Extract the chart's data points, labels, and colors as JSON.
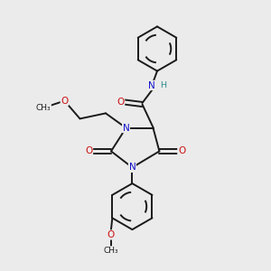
{
  "background_color": "#ebebeb",
  "bond_color": "#1a1a1a",
  "atom_colors": {
    "N": "#1010cc",
    "O": "#cc1010",
    "C": "#1a1a1a",
    "H": "#2a8a8a"
  },
  "figsize": [
    3.0,
    3.0
  ],
  "dpi": 100
}
